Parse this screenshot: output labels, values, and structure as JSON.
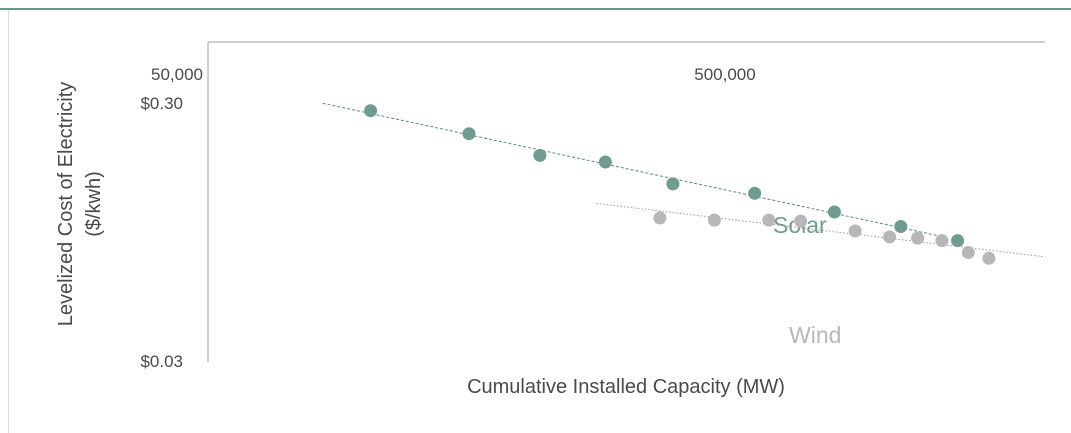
{
  "chart_data": {
    "type": "scatter",
    "xlabel": "Cumulative Installed Capacity (MW)",
    "ylabel_lines": [
      "Levelized Cost of Electricity",
      "($/kwh)"
    ],
    "x_scale": "log",
    "y_scale": "log",
    "x_ticks": [
      {
        "value": 50000,
        "label": "50,000"
      },
      {
        "value": 500000,
        "label": "500,000"
      }
    ],
    "y_ticks": [
      {
        "value": 0.3,
        "label": "$0.30"
      },
      {
        "value": 0.03,
        "label": "$0.03"
      }
    ],
    "xlim": [
      36000,
      3000000
    ],
    "ylim": [
      0.03,
      0.3
    ],
    "grid": false,
    "legend": "inline labels next to series",
    "series": [
      {
        "name": "Solar",
        "color": "#6f9b93",
        "trendline": true,
        "trend_x": [
          66000,
          1700000
        ],
        "points": [
          [
            85000,
            0.285
          ],
          [
            143000,
            0.232
          ],
          [
            208000,
            0.191
          ],
          [
            294000,
            0.18
          ],
          [
            420000,
            0.148
          ],
          [
            647000,
            0.136
          ],
          [
            986000,
            0.115
          ],
          [
            1400000,
            0.101
          ],
          [
            1890000,
            0.089
          ]
        ]
      },
      {
        "name": "Wind",
        "color": "#b7b7b7",
        "trendline": true,
        "trend_x": [
          280000,
          3000000
        ],
        "points": [
          [
            392000,
            0.109
          ],
          [
            523000,
            0.107
          ],
          [
            697000,
            0.107
          ],
          [
            825000,
            0.106
          ],
          [
            1100000,
            0.097
          ],
          [
            1320000,
            0.092
          ],
          [
            1530000,
            0.091
          ],
          [
            1740000,
            0.089
          ],
          [
            2000000,
            0.08
          ],
          [
            2230000,
            0.076
          ]
        ]
      }
    ]
  }
}
